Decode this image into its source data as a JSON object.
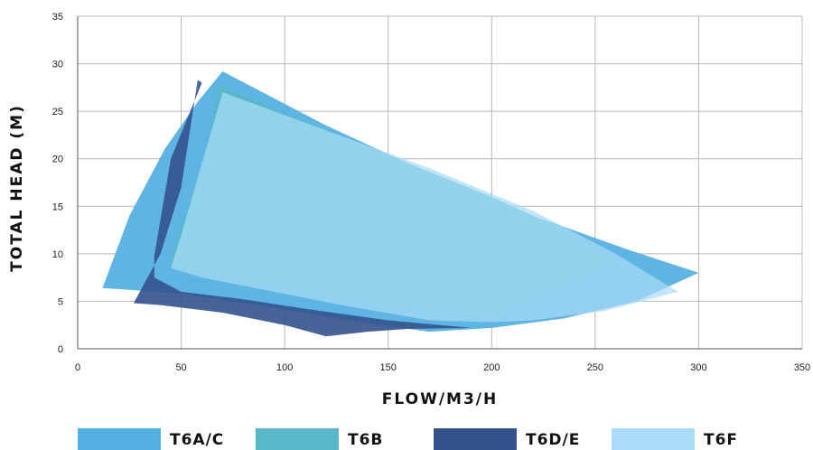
{
  "chart_data": {
    "type": "area",
    "xlabel": "FLOW/M3/H",
    "ylabel": "TOTAL HEAD (M)",
    "xlim": [
      0,
      350
    ],
    "ylim": [
      0,
      35
    ],
    "x_ticks": [
      0,
      50,
      100,
      150,
      200,
      250,
      300,
      350
    ],
    "y_ticks": [
      0,
      5,
      10,
      15,
      20,
      25,
      30,
      35
    ],
    "x_tick_labels": [
      "0",
      "50",
      "100",
      "150",
      "200",
      "250",
      "300",
      "350"
    ],
    "y_tick_labels": [
      "0",
      "5",
      "10",
      "15",
      "20",
      "25",
      "30",
      "35"
    ],
    "grid": true,
    "legend_position": "bottom",
    "series": [
      {
        "name": "T6A/C",
        "color": "#55b0e2",
        "points": [
          [
            12,
            6.4
          ],
          [
            25,
            14
          ],
          [
            42,
            21
          ],
          [
            58,
            26
          ],
          [
            70,
            29.2
          ],
          [
            120,
            23.5
          ],
          [
            170,
            18.5
          ],
          [
            220,
            14
          ],
          [
            265,
            10.5
          ],
          [
            300,
            8
          ],
          [
            270,
            5
          ],
          [
            235,
            3.2
          ],
          [
            200,
            2.2
          ],
          [
            170,
            1.8
          ],
          [
            130,
            3
          ],
          [
            90,
            4.5
          ],
          [
            50,
            5.8
          ],
          [
            25,
            6.2
          ]
        ]
      },
      {
        "name": "T6B",
        "color": "#58b7c8",
        "points": [
          [
            45,
            9
          ],
          [
            50,
            13
          ],
          [
            60,
            19
          ],
          [
            65,
            24
          ],
          [
            68,
            27.8
          ],
          [
            115,
            23.5
          ],
          [
            160,
            19.5
          ],
          [
            200,
            16
          ],
          [
            230,
            13
          ],
          [
            255,
            10
          ],
          [
            260,
            9.5
          ],
          [
            230,
            6
          ],
          [
            200,
            3.5
          ],
          [
            160,
            4.2
          ],
          [
            110,
            6
          ],
          [
            70,
            7.5
          ],
          [
            48,
            8.5
          ]
        ]
      },
      {
        "name": "T6D/E",
        "color": "#34528c",
        "points": [
          [
            27,
            4.8
          ],
          [
            40,
            10
          ],
          [
            50,
            17
          ],
          [
            58,
            28.3
          ],
          [
            60,
            28
          ],
          [
            45,
            20
          ],
          [
            37,
            9.8
          ],
          [
            37,
            7.5
          ],
          [
            50,
            6
          ],
          [
            80,
            5.2
          ],
          [
            110,
            4.2
          ],
          [
            150,
            3
          ],
          [
            190,
            2.2
          ],
          [
            160,
            2.1
          ],
          [
            140,
            1.8
          ],
          [
            120,
            1.3
          ],
          [
            100,
            2.5
          ],
          [
            70,
            3.8
          ],
          [
            40,
            4.6
          ]
        ]
      },
      {
        "name": "T6F",
        "color": "#a9ddf7",
        "points": [
          [
            45,
            8.5
          ],
          [
            50,
            12
          ],
          [
            58,
            18
          ],
          [
            66,
            24
          ],
          [
            70,
            27
          ],
          [
            120,
            23
          ],
          [
            170,
            19
          ],
          [
            220,
            14.5
          ],
          [
            260,
            10
          ],
          [
            290,
            6
          ],
          [
            255,
            4
          ],
          [
            220,
            3
          ],
          [
            200,
            2.8
          ],
          [
            170,
            3
          ],
          [
            130,
            4.5
          ],
          [
            90,
            6.2
          ],
          [
            60,
            7.5
          ]
        ]
      }
    ]
  }
}
